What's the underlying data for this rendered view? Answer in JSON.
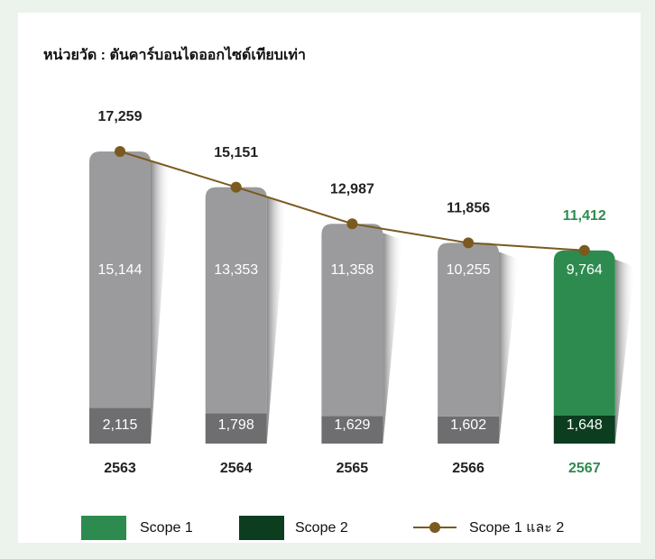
{
  "chart_data": {
    "type": "stacked_bar_line",
    "title": "หน่วยวัด : ตันคาร์บอนไดออกไซด์เทียบเท่า",
    "categories": [
      "2563",
      "2564",
      "2565",
      "2566",
      "2567"
    ],
    "category_colors": [
      "#222222",
      "#222222",
      "#222222",
      "#222222",
      "#2e8b4f"
    ],
    "series": [
      {
        "name": "Scope 2",
        "color": "#0c3d1f",
        "colors": [
          "#6e6e70",
          "#6e6e70",
          "#6e6e70",
          "#6e6e70",
          "#0c3d1f"
        ],
        "values": [
          2115,
          1798,
          1629,
          1602,
          1648
        ],
        "value_labels": [
          "2,115",
          "1,798",
          "1,629",
          "1,602",
          "1,648"
        ]
      },
      {
        "name": "Scope 1",
        "color": "#2e8b4f",
        "colors": [
          "#9b9b9d",
          "#9b9b9d",
          "#9b9b9d",
          "#9b9b9d",
          "#2e8b4f"
        ],
        "values": [
          15144,
          13353,
          11358,
          10255,
          9764
        ],
        "value_labels": [
          "15,144",
          "13,353",
          "11,358",
          "10,255",
          "9,764"
        ]
      },
      {
        "name": "Scope 1 และ 2",
        "color": "#7a5a1e",
        "line": true,
        "label_colors": [
          "#222222",
          "#222222",
          "#222222",
          "#222222",
          "#2e8b4f"
        ],
        "values": [
          17259,
          15151,
          12987,
          11856,
          11412
        ],
        "value_labels": [
          "17,259",
          "15,151",
          "12,987",
          "11,856",
          "11,412"
        ]
      }
    ]
  }
}
